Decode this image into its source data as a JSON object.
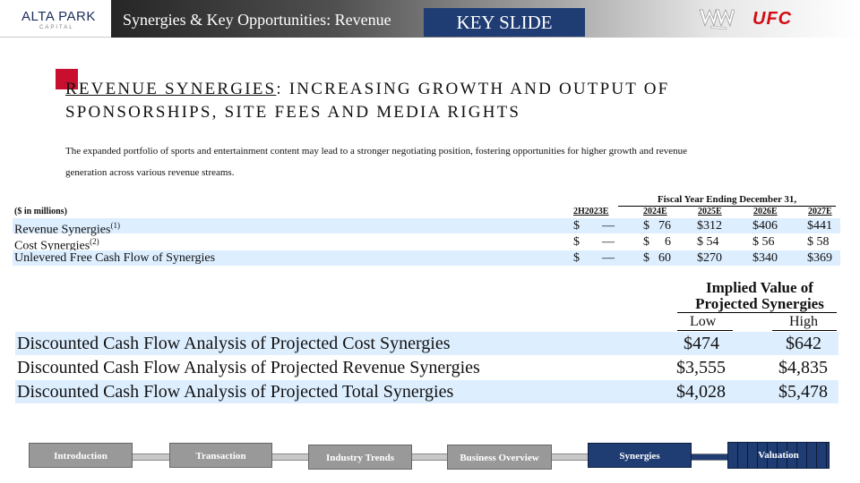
{
  "header": {
    "logo_main": "ALTA PARK",
    "logo_sub": "CAPITAL",
    "title": "Synergies & Key Opportunities: Revenue",
    "key_slide": "KEY SLIDE",
    "brand_left": "W",
    "brand_right": "UFC"
  },
  "headline": {
    "lead": "REVENUE SYNERGIES",
    "rest": ": INCREASING GROWTH AND OUTPUT OF SPONSORSHIPS, SITE FEES AND MEDIA RIGHTS"
  },
  "intro": "The expanded portfolio of sports and entertainment content may lead to a stronger negotiating position, fostering opportunities for higher growth and revenue generation across various revenue streams.",
  "synergy_table": {
    "fiscal_header": "Fiscal Year Ending December 31,",
    "units": "($ in millions)",
    "columns": [
      "2H2023E",
      "2024E",
      "2025E",
      "2026E",
      "2027E"
    ],
    "rows": [
      {
        "label": "Revenue Synergies",
        "note": "(1)",
        "dollar_2h": "$",
        "values": [
          "—",
          "76",
          "$312",
          "$406",
          "$441"
        ],
        "dollar_2024": "$"
      },
      {
        "label": "Cost Synergies",
        "note": "(2)",
        "dollar_2h": "$",
        "values": [
          "—",
          "6",
          "$ 54",
          "$ 56",
          "$ 58"
        ],
        "dollar_2024": "$"
      },
      {
        "label": "Unlevered Free Cash Flow of Synergies",
        "note": "",
        "dollar_2h": "$",
        "values": [
          "—",
          "60",
          "$270",
          "$340",
          "$369"
        ],
        "dollar_2024": "$"
      }
    ]
  },
  "implied_value": {
    "header": "Implied Value of Projected Synergies",
    "low_label": "Low",
    "high_label": "High",
    "rows": [
      {
        "label": "Discounted Cash Flow Analysis of Projected Cost Synergies",
        "low": "$474",
        "high": "$642"
      },
      {
        "label": "Discounted Cash Flow Analysis of Projected Revenue Synergies",
        "low": "$3,555",
        "high": "$4,835"
      },
      {
        "label": "Discounted Cash Flow Analysis of Projected Total Synergies",
        "low": "$4,028",
        "high": "$5,478"
      }
    ]
  },
  "nav": {
    "items": [
      {
        "label": "Introduction",
        "state": "inactive"
      },
      {
        "label": "Transaction",
        "state": "inactive"
      },
      {
        "label": "Industry Trends",
        "state": "inactive"
      },
      {
        "label": "Business Overview",
        "state": "inactive"
      },
      {
        "label": "Synergies",
        "state": "active"
      },
      {
        "label": "Valuation",
        "state": "active"
      }
    ]
  },
  "colors": {
    "accent_navy": "#1f3c73",
    "accent_red": "#c8102e",
    "row_shade": "#ddeeff",
    "ufc_red": "#d20a11"
  }
}
